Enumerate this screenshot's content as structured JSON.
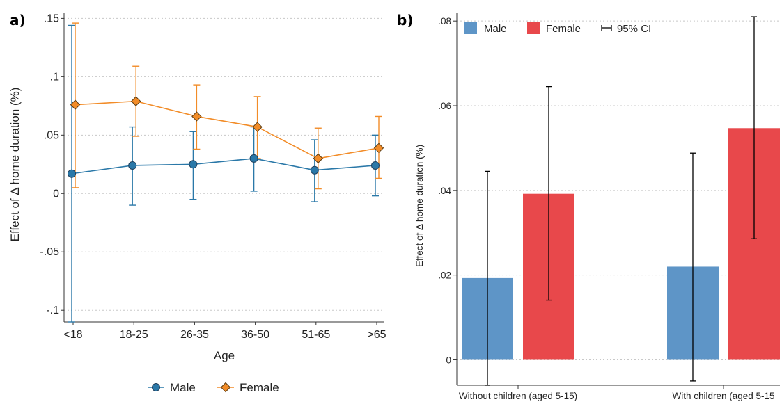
{
  "panel_a": {
    "label": "a)",
    "legend": {
      "male": "Male",
      "female": "Female"
    }
  },
  "panel_b": {
    "label": "b)",
    "legend": {
      "male": "Male",
      "female": "Female",
      "ci": "95% CI"
    }
  },
  "colors": {
    "male_line": "#2a78a8",
    "female_line": "#f28c28",
    "male_bar": "#5e95c7",
    "female_bar": "#e8484b",
    "ci": "#000000"
  },
  "chart_data": [
    {
      "type": "line",
      "title": "",
      "xlabel": "Age",
      "ylabel": "Effect of Δ home duration (%)",
      "categories": [
        "<18",
        "18-25",
        "26-35",
        "36-50",
        "51-65",
        ">65"
      ],
      "ylim": [
        -0.11,
        0.155
      ],
      "yticks": [
        -0.1,
        -0.05,
        0,
        0.05,
        0.1,
        0.15
      ],
      "ytick_labels": [
        "-.1",
        "-.05",
        "0",
        ".05",
        ".1",
        ".15"
      ],
      "grid": true,
      "legend_position": "bottom",
      "series": [
        {
          "name": "Male",
          "values": [
            0.017,
            0.024,
            0.025,
            0.03,
            0.02,
            0.024
          ],
          "ci_low": [
            -0.11,
            -0.01,
            -0.005,
            0.002,
            -0.007,
            -0.002
          ],
          "ci_high": [
            0.144,
            0.057,
            0.053,
            0.057,
            0.046,
            0.05
          ],
          "marker": "circle"
        },
        {
          "name": "Female",
          "values": [
            0.076,
            0.079,
            0.066,
            0.057,
            0.03,
            0.039
          ],
          "ci_low": [
            0.005,
            0.049,
            0.038,
            0.03,
            0.004,
            0.013
          ],
          "ci_high": [
            0.146,
            0.109,
            0.093,
            0.083,
            0.056,
            0.066
          ],
          "marker": "diamond"
        }
      ]
    },
    {
      "type": "bar",
      "title": "",
      "xlabel": "",
      "ylabel": "Effect of Δ home duration (%)",
      "categories": [
        "Without children (aged 5-15)",
        "With children (aged 5-15"
      ],
      "ylim": [
        -0.006,
        0.082
      ],
      "yticks": [
        0,
        0.02,
        0.04,
        0.06,
        0.08
      ],
      "ytick_labels": [
        "0",
        ".02",
        ".04",
        ".06",
        ".08"
      ],
      "grid": true,
      "legend_position": "top-left",
      "series": [
        {
          "name": "Male",
          "values": [
            0.0193,
            0.022
          ],
          "ci_low": [
            -0.006,
            -0.005
          ],
          "ci_high": [
            0.0445,
            0.0488
          ]
        },
        {
          "name": "Female",
          "values": [
            0.0392,
            0.0547
          ],
          "ci_low": [
            0.0141,
            0.0286
          ],
          "ci_high": [
            0.0645,
            0.081
          ]
        }
      ]
    }
  ]
}
